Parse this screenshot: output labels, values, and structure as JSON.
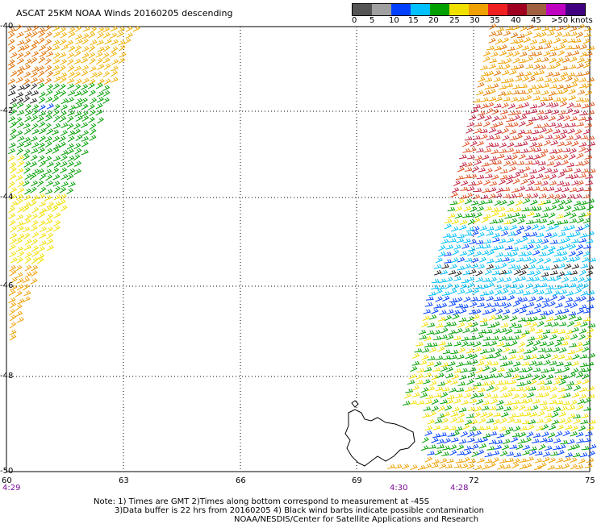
{
  "title": "ASCAT 25KM NOAA Winds 20160205 descending",
  "scale": {
    "colors": [
      "#555555",
      "#a0a0a0",
      "#0040ff",
      "#00c0ff",
      "#00a000",
      "#f0e000",
      "#f0a000",
      "#f02020",
      "#a00020",
      "#a06040",
      "#c000c0",
      "#400080"
    ],
    "labels": [
      "0",
      "5",
      "10",
      "15",
      "20",
      "25",
      "30",
      "35",
      "40",
      "45",
      ">50 knots"
    ]
  },
  "lat_labels": [
    "-40",
    "-42",
    "-44",
    "-46",
    "-48",
    "-50"
  ],
  "lon_labels": [
    "60",
    "63",
    "66",
    "69",
    "72",
    "75"
  ],
  "time_labels": [
    "4:29",
    "4:30",
    "4:28"
  ],
  "notes": {
    "line1": "Note: 1) Times are GMT 2)Times along bottom correspond to measurement at -45S",
    "line2": "3)Data buffer is 22 hrs from 20160205 4) Black wind barbs indicate possible contamination",
    "line3": "NOAA/NESDIS/Center for Satellite Applications and Research"
  }
}
